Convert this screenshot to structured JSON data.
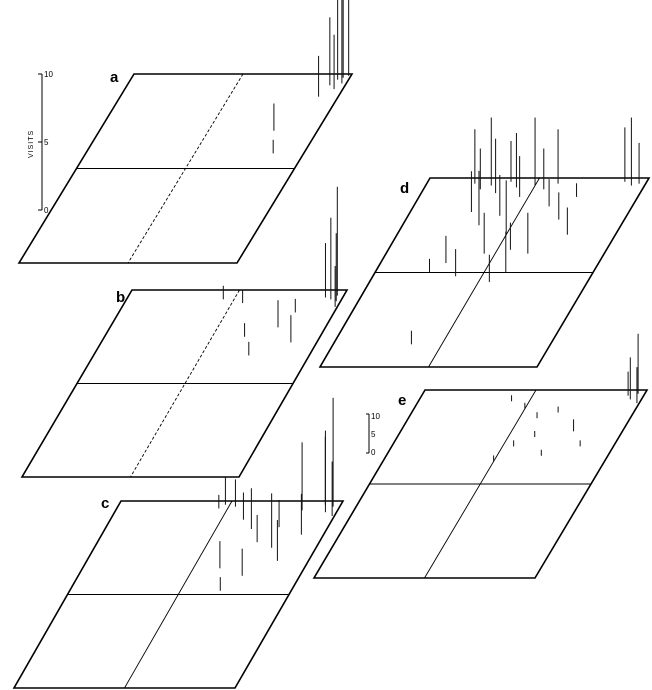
{
  "chart_data": {
    "type": "3d-spike",
    "scale": {
      "ylabel": "VISITS",
      "ticks": [
        "0",
        "5",
        "10"
      ],
      "ylim": [
        0,
        10
      ]
    },
    "inset_scale": {
      "ticks": [
        "0",
        "5",
        "10"
      ],
      "ylim": [
        0,
        10
      ]
    },
    "panels": [
      {
        "label": "a",
        "visits": [
          {
            "x": 0.97,
            "y": 0.02,
            "v": 12
          },
          {
            "x": 0.98,
            "y": 0.05,
            "v": 9
          },
          {
            "x": 0.95,
            "y": 0.03,
            "v": 7
          },
          {
            "x": 0.99,
            "y": 0.01,
            "v": 10
          },
          {
            "x": 0.93,
            "y": 0.06,
            "v": 5
          },
          {
            "x": 0.96,
            "y": 0.08,
            "v": 4
          },
          {
            "x": 0.91,
            "y": 0.12,
            "v": 3
          },
          {
            "x": 0.8,
            "y": 0.3,
            "v": 2
          },
          {
            "x": 0.86,
            "y": 0.42,
            "v": 1
          }
        ]
      },
      {
        "label": "b",
        "visits": [
          {
            "x": 0.97,
            "y": 0.03,
            "v": 8
          },
          {
            "x": 0.95,
            "y": 0.05,
            "v": 6
          },
          {
            "x": 0.98,
            "y": 0.06,
            "v": 5
          },
          {
            "x": 0.92,
            "y": 0.04,
            "v": 4
          },
          {
            "x": 0.99,
            "y": 0.09,
            "v": 3
          },
          {
            "x": 0.45,
            "y": 0.05,
            "v": 1
          },
          {
            "x": 0.55,
            "y": 0.07,
            "v": 1
          },
          {
            "x": 0.82,
            "y": 0.12,
            "v": 1
          },
          {
            "x": 0.78,
            "y": 0.2,
            "v": 2
          },
          {
            "x": 0.72,
            "y": 0.35,
            "v": 1
          },
          {
            "x": 0.88,
            "y": 0.28,
            "v": 2
          },
          {
            "x": 0.65,
            "y": 0.25,
            "v": 1
          }
        ]
      },
      {
        "label": "c",
        "visits": [
          {
            "x": 0.97,
            "y": 0.03,
            "v": 8
          },
          {
            "x": 0.95,
            "y": 0.06,
            "v": 6
          },
          {
            "x": 0.93,
            "y": 0.02,
            "v": 5
          },
          {
            "x": 0.99,
            "y": 0.08,
            "v": 4
          },
          {
            "x": 0.48,
            "y": 0.02,
            "v": 2
          },
          {
            "x": 0.46,
            "y": 0.04,
            "v": 1
          },
          {
            "x": 0.53,
            "y": 0.03,
            "v": 2
          },
          {
            "x": 0.6,
            "y": 0.1,
            "v": 2
          },
          {
            "x": 0.66,
            "y": 0.15,
            "v": 3
          },
          {
            "x": 0.72,
            "y": 0.22,
            "v": 2
          },
          {
            "x": 0.8,
            "y": 0.25,
            "v": 4
          },
          {
            "x": 0.86,
            "y": 0.32,
            "v": 3
          },
          {
            "x": 0.74,
            "y": 0.4,
            "v": 2
          },
          {
            "x": 0.68,
            "y": 0.48,
            "v": 1
          },
          {
            "x": 0.62,
            "y": 0.36,
            "v": 2
          },
          {
            "x": 0.78,
            "y": 0.14,
            "v": 2
          },
          {
            "x": 0.9,
            "y": 0.18,
            "v": 3
          },
          {
            "x": 0.84,
            "y": 0.05,
            "v": 5
          }
        ]
      },
      {
        "label": "d",
        "visits": [
          {
            "x": 0.22,
            "y": 0.03,
            "v": 4
          },
          {
            "x": 0.26,
            "y": 0.06,
            "v": 3
          },
          {
            "x": 0.3,
            "y": 0.04,
            "v": 5
          },
          {
            "x": 0.34,
            "y": 0.08,
            "v": 4
          },
          {
            "x": 0.38,
            "y": 0.02,
            "v": 3
          },
          {
            "x": 0.42,
            "y": 0.05,
            "v": 4
          },
          {
            "x": 0.46,
            "y": 0.1,
            "v": 3
          },
          {
            "x": 0.5,
            "y": 0.04,
            "v": 5
          },
          {
            "x": 0.55,
            "y": 0.06,
            "v": 3
          },
          {
            "x": 0.6,
            "y": 0.03,
            "v": 4
          },
          {
            "x": 0.9,
            "y": 0.02,
            "v": 4
          },
          {
            "x": 0.94,
            "y": 0.04,
            "v": 5
          },
          {
            "x": 0.97,
            "y": 0.03,
            "v": 3
          },
          {
            "x": 0.28,
            "y": 0.18,
            "v": 3
          },
          {
            "x": 0.35,
            "y": 0.25,
            "v": 4
          },
          {
            "x": 0.42,
            "y": 0.2,
            "v": 3
          },
          {
            "x": 0.5,
            "y": 0.3,
            "v": 4
          },
          {
            "x": 0.45,
            "y": 0.4,
            "v": 3
          },
          {
            "x": 0.56,
            "y": 0.38,
            "v": 2
          },
          {
            "x": 0.62,
            "y": 0.15,
            "v": 2
          },
          {
            "x": 0.7,
            "y": 0.22,
            "v": 2
          },
          {
            "x": 0.78,
            "y": 0.3,
            "v": 2
          },
          {
            "x": 0.65,
            "y": 0.4,
            "v": 3
          },
          {
            "x": 0.3,
            "y": 0.45,
            "v": 2
          },
          {
            "x": 0.25,
            "y": 0.5,
            "v": 1
          },
          {
            "x": 0.38,
            "y": 0.52,
            "v": 2
          },
          {
            "x": 0.55,
            "y": 0.55,
            "v": 2
          },
          {
            "x": 0.6,
            "y": 0.5,
            "v": 3
          },
          {
            "x": 0.72,
            "y": 0.1,
            "v": 1
          },
          {
            "x": 0.36,
            "y": 0.88,
            "v": 1
          }
        ]
      },
      {
        "label": "e",
        "visits": [
          {
            "x": 0.97,
            "y": 0.02,
            "v": 10
          },
          {
            "x": 0.95,
            "y": 0.05,
            "v": 7
          },
          {
            "x": 0.99,
            "y": 0.07,
            "v": 6
          },
          {
            "x": 0.93,
            "y": 0.03,
            "v": 4
          },
          {
            "x": 0.42,
            "y": 0.06,
            "v": 1
          },
          {
            "x": 0.5,
            "y": 0.1,
            "v": 1
          },
          {
            "x": 0.58,
            "y": 0.15,
            "v": 1
          },
          {
            "x": 0.66,
            "y": 0.12,
            "v": 1
          },
          {
            "x": 0.62,
            "y": 0.25,
            "v": 1
          },
          {
            "x": 0.55,
            "y": 0.3,
            "v": 1
          },
          {
            "x": 0.7,
            "y": 0.35,
            "v": 1
          },
          {
            "x": 0.78,
            "y": 0.22,
            "v": 2
          },
          {
            "x": 0.85,
            "y": 0.3,
            "v": 1
          },
          {
            "x": 0.5,
            "y": 0.38,
            "v": 1
          }
        ]
      }
    ]
  }
}
